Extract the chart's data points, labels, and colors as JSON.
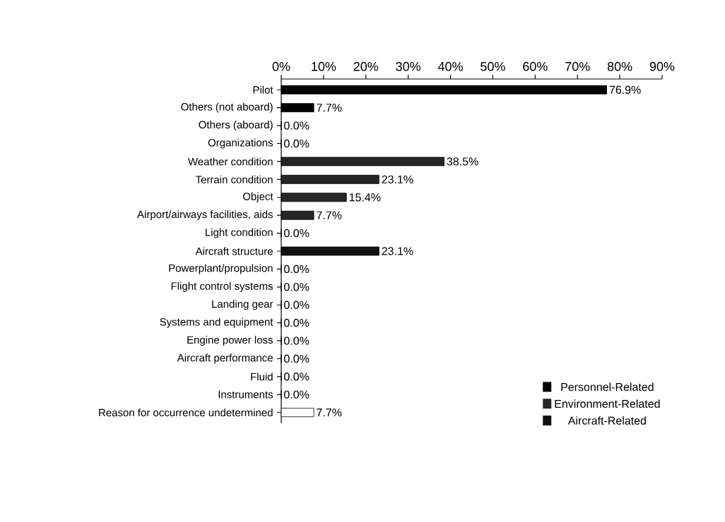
{
  "chart_data": {
    "type": "bar",
    "orientation": "horizontal",
    "categories": [
      "Pilot",
      "Others (not aboard)",
      "Others (aboard)",
      "Organizations",
      "Weather condition",
      "Terrain condition",
      "Object",
      "Airport/airways facilities, aids",
      "Light condition",
      "Aircraft structure",
      "Powerplant/propulsion",
      "Flight control systems",
      "Landing gear",
      "Systems and equipment",
      "Engine power loss",
      "Aircraft performance",
      "Fluid",
      "Instruments",
      "Reason for occurrence undetermined"
    ],
    "series": [
      {
        "name": "Personnel-Related",
        "color": "#000000",
        "values": [
          76.9,
          7.7,
          0.0,
          0.0,
          null,
          null,
          null,
          null,
          null,
          null,
          null,
          null,
          null,
          null,
          null,
          null,
          null,
          null,
          null
        ],
        "value_labels": [
          "76.9%",
          "7.7%",
          "0.0%",
          "0.0%",
          null,
          null,
          null,
          null,
          null,
          null,
          null,
          null,
          null,
          null,
          null,
          null,
          null,
          null,
          null
        ]
      },
      {
        "name": "Environment-Related",
        "color": "#262626",
        "values": [
          null,
          null,
          null,
          null,
          38.5,
          23.1,
          15.4,
          7.7,
          0.0,
          null,
          null,
          null,
          null,
          null,
          null,
          null,
          null,
          null,
          null
        ],
        "value_labels": [
          null,
          null,
          null,
          null,
          "38.5%",
          "23.1%",
          "15.4%",
          "7.7%",
          "0.0%",
          null,
          null,
          null,
          null,
          null,
          null,
          null,
          null,
          null,
          null
        ]
      },
      {
        "name": "Aircraft-Related",
        "color": "#111111",
        "values": [
          null,
          null,
          null,
          null,
          null,
          null,
          null,
          null,
          null,
          23.1,
          0.0,
          0.0,
          0.0,
          0.0,
          0.0,
          0.0,
          0.0,
          0.0,
          null
        ],
        "value_labels": [
          null,
          null,
          null,
          null,
          null,
          null,
          null,
          null,
          null,
          "23.1%",
          "0.0%",
          "0.0%",
          "0.0%",
          "0.0%",
          "0.0%",
          "0.0%",
          "0.0%",
          "0.0%",
          null
        ]
      },
      {
        "color": "#ffffff",
        "values": [
          null,
          null,
          null,
          null,
          null,
          null,
          null,
          null,
          null,
          null,
          null,
          null,
          null,
          null,
          null,
          null,
          null,
          null,
          7.7
        ],
        "value_labels": [
          null,
          null,
          null,
          null,
          null,
          null,
          null,
          null,
          null,
          null,
          null,
          null,
          null,
          null,
          null,
          null,
          null,
          null,
          "7.7%"
        ]
      }
    ],
    "xlim": [
      0,
      90
    ],
    "xticks": [
      {
        "value": 0,
        "label": "0%"
      },
      {
        "value": 10,
        "label": "10%"
      },
      {
        "value": 20,
        "label": "20%"
      },
      {
        "value": 30,
        "label": "30%"
      },
      {
        "value": 40,
        "label": "40%"
      },
      {
        "value": 50,
        "label": "50%"
      },
      {
        "value": 60,
        "label": "60%"
      },
      {
        "value": 70,
        "label": "70%"
      },
      {
        "value": 80,
        "label": "80%"
      },
      {
        "value": 90,
        "label": "90%"
      }
    ],
    "legend": "bottom right"
  }
}
